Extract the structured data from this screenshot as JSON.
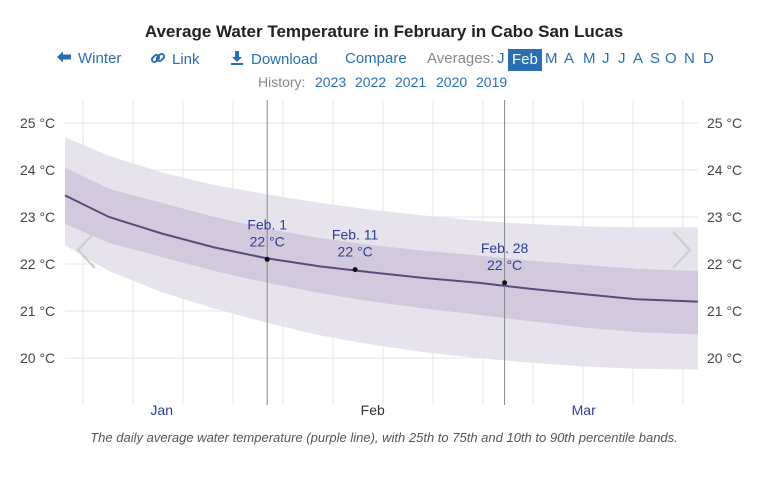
{
  "title": "Average Water Temperature in February in Cabo San Lucas",
  "nav": {
    "winter": "Winter",
    "link": "Link",
    "download": "Download",
    "compare": "Compare",
    "averages_label": "Averages:",
    "months": [
      "J",
      "Feb",
      "M",
      "A",
      "M",
      "J",
      "J",
      "A",
      "S",
      "O",
      "N",
      "D"
    ],
    "selected_month": "Feb"
  },
  "history": {
    "label": "History:",
    "years": [
      "2023",
      "2022",
      "2021",
      "2020",
      "2019"
    ]
  },
  "caption": "The daily average water temperature (purple line), with 25th to 75th and 10th to 90th percentile bands.",
  "colors": {
    "accent": "#2a6fb3",
    "line": "#5c4a7e",
    "band_outer": "#e4e0ea",
    "band_inner": "#cfc7da"
  },
  "chart_data": {
    "type": "area",
    "title": "Average Water Temperature in February in Cabo San Lucas",
    "x_domain_days": [
      -23,
      49
    ],
    "ylim": [
      19,
      25.5
    ],
    "y_ticks": [
      20,
      21,
      22,
      23,
      24,
      25
    ],
    "y_tick_labels": [
      "20 °C",
      "21 °C",
      "22 °C",
      "23 °C",
      "24 °C",
      "25 °C"
    ],
    "x_labels": [
      {
        "label": "Jan",
        "day": -12
      },
      {
        "label": "Feb",
        "day": 12
      },
      {
        "label": "Mar",
        "day": 36
      }
    ],
    "grid": true,
    "x": [
      -23,
      -18,
      -12,
      -6,
      0,
      6,
      12,
      18,
      24,
      30,
      36,
      42,
      49
    ],
    "series": [
      {
        "name": "average",
        "values": [
          23.46,
          23.0,
          22.65,
          22.35,
          22.12,
          21.95,
          21.82,
          21.7,
          21.6,
          21.47,
          21.36,
          21.25,
          21.2
        ]
      },
      {
        "name": "p25",
        "values": [
          22.85,
          22.45,
          22.15,
          21.85,
          21.6,
          21.38,
          21.2,
          21.05,
          20.92,
          20.78,
          20.65,
          20.55,
          20.5
        ]
      },
      {
        "name": "p75",
        "values": [
          24.05,
          23.6,
          23.3,
          23.0,
          22.75,
          22.55,
          22.4,
          22.28,
          22.18,
          22.07,
          21.98,
          21.9,
          21.85
        ]
      },
      {
        "name": "p10",
        "values": [
          22.4,
          21.85,
          21.4,
          21.05,
          20.75,
          20.48,
          20.28,
          20.12,
          20.0,
          19.9,
          19.82,
          19.77,
          19.75
        ]
      },
      {
        "name": "p90",
        "values": [
          24.7,
          24.3,
          23.95,
          23.68,
          23.48,
          23.3,
          23.15,
          23.03,
          22.92,
          22.85,
          22.8,
          22.78,
          22.78
        ]
      }
    ],
    "markers": [
      {
        "day": 0,
        "value": 22.1,
        "label": "Feb. 1",
        "value_label": "22 °C",
        "cursor": true
      },
      {
        "day": 10,
        "value": 21.88,
        "label": "Feb. 11",
        "value_label": "22 °C",
        "cursor": false
      },
      {
        "day": 27,
        "value": 21.6,
        "label": "Feb. 28",
        "value_label": "22 °C",
        "cursor": true
      }
    ]
  }
}
